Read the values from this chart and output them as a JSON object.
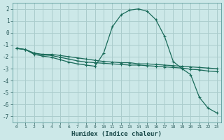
{
  "xlabel": "Humidex (Indice chaleur)",
  "bg_color": "#cce8e8",
  "grid_color": "#aacccc",
  "line_color": "#1a6b5a",
  "xlim": [
    -0.5,
    23.5
  ],
  "ylim": [
    -7.5,
    2.5
  ],
  "xticks": [
    0,
    1,
    2,
    3,
    4,
    5,
    6,
    7,
    8,
    9,
    10,
    11,
    12,
    13,
    14,
    15,
    16,
    17,
    18,
    19,
    20,
    21,
    22,
    23
  ],
  "yticks": [
    -7,
    -6,
    -5,
    -4,
    -3,
    -2,
    -1,
    0,
    1,
    2
  ],
  "series": [
    {
      "x": [
        0,
        1,
        2,
        3,
        4,
        5,
        6,
        7,
        8,
        9,
        10,
        11,
        12,
        13,
        14,
        15,
        16,
        17,
        18,
        19,
        20,
        21,
        22,
        23
      ],
      "y": [
        -1.3,
        -1.4,
        -1.7,
        -1.8,
        -1.8,
        -1.9,
        -2.0,
        -2.1,
        -2.2,
        -2.3,
        -2.4,
        -2.45,
        -2.5,
        -2.5,
        -2.6,
        -2.6,
        -2.65,
        -2.7,
        -2.75,
        -2.8,
        -2.85,
        -2.9,
        -2.95,
        -3.0
      ]
    },
    {
      "x": [
        0,
        1,
        2,
        3,
        4,
        5,
        6,
        7,
        8,
        9,
        10,
        11,
        12,
        13,
        14,
        15,
        16,
        17,
        18,
        19,
        20,
        21,
        22,
        23
      ],
      "y": [
        -1.3,
        -1.4,
        -1.7,
        -1.85,
        -1.9,
        -2.05,
        -2.2,
        -2.35,
        -2.45,
        -2.5,
        -2.55,
        -2.6,
        -2.65,
        -2.7,
        -2.7,
        -2.75,
        -2.8,
        -2.85,
        -2.9,
        -2.95,
        -3.05,
        -3.1,
        -3.2,
        -3.25
      ]
    },
    {
      "x": [
        0,
        1,
        2,
        3,
        4,
        5,
        6,
        7,
        8,
        9,
        10,
        11,
        12,
        13,
        14,
        15,
        16,
        17,
        18,
        19,
        20,
        21,
        22,
        23
      ],
      "y": [
        -1.3,
        -1.4,
        -1.8,
        -1.95,
        -2.05,
        -2.25,
        -2.45,
        -2.6,
        -2.7,
        -2.8,
        -1.7,
        0.5,
        1.5,
        1.9,
        2.0,
        1.8,
        1.1,
        -0.3,
        -2.4,
        -3.0,
        -3.5,
        -5.4,
        -6.3,
        -6.7
      ]
    }
  ]
}
